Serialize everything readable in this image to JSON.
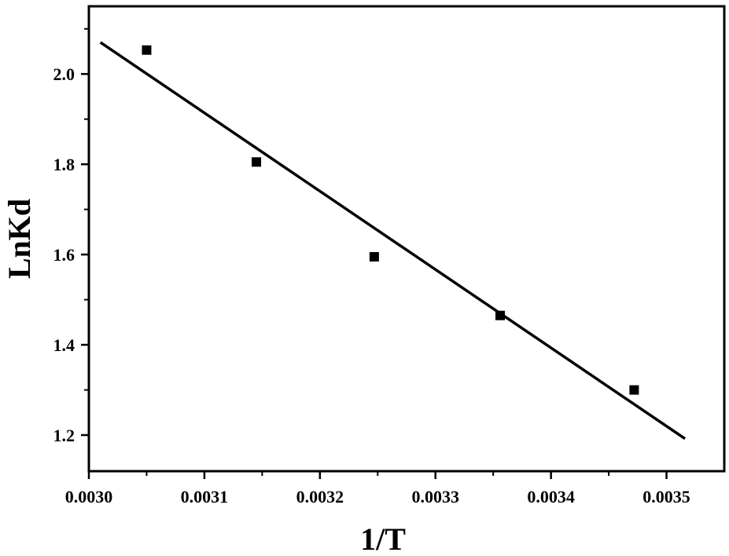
{
  "chart_data": {
    "type": "scatter",
    "title": "",
    "xlabel": "1/T",
    "ylabel": "LnKd",
    "xlim": [
      0.003,
      0.00355
    ],
    "ylim": [
      1.12,
      2.15
    ],
    "xticks": [
      {
        "value": 0.003,
        "label": "0.0030"
      },
      {
        "value": 0.0031,
        "label": "0.0031"
      },
      {
        "value": 0.0032,
        "label": "0.0032"
      },
      {
        "value": 0.0033,
        "label": "0.0033"
      },
      {
        "value": 0.0034,
        "label": "0.0034"
      },
      {
        "value": 0.0035,
        "label": "0.0035"
      }
    ],
    "yticks": [
      {
        "value": 1.2,
        "label": "1.2"
      },
      {
        "value": 1.4,
        "label": "1.4"
      },
      {
        "value": 1.6,
        "label": "1.6"
      },
      {
        "value": 1.8,
        "label": "1.8"
      },
      {
        "value": 2.0,
        "label": "2.0"
      }
    ],
    "grid": false,
    "legend": "none",
    "series": [
      {
        "marker": "square",
        "color": "#000000",
        "points": [
          {
            "x": 0.00305,
            "y": 2.053
          },
          {
            "x": 0.003145,
            "y": 1.805
          },
          {
            "x": 0.003247,
            "y": 1.595
          },
          {
            "x": 0.003356,
            "y": 1.465
          },
          {
            "x": 0.003472,
            "y": 1.3
          }
        ]
      }
    ],
    "fit_line": {
      "color": "#000000",
      "points": [
        {
          "x": 0.00301,
          "y": 2.07
        },
        {
          "x": 0.003516,
          "y": 1.192
        }
      ]
    }
  }
}
